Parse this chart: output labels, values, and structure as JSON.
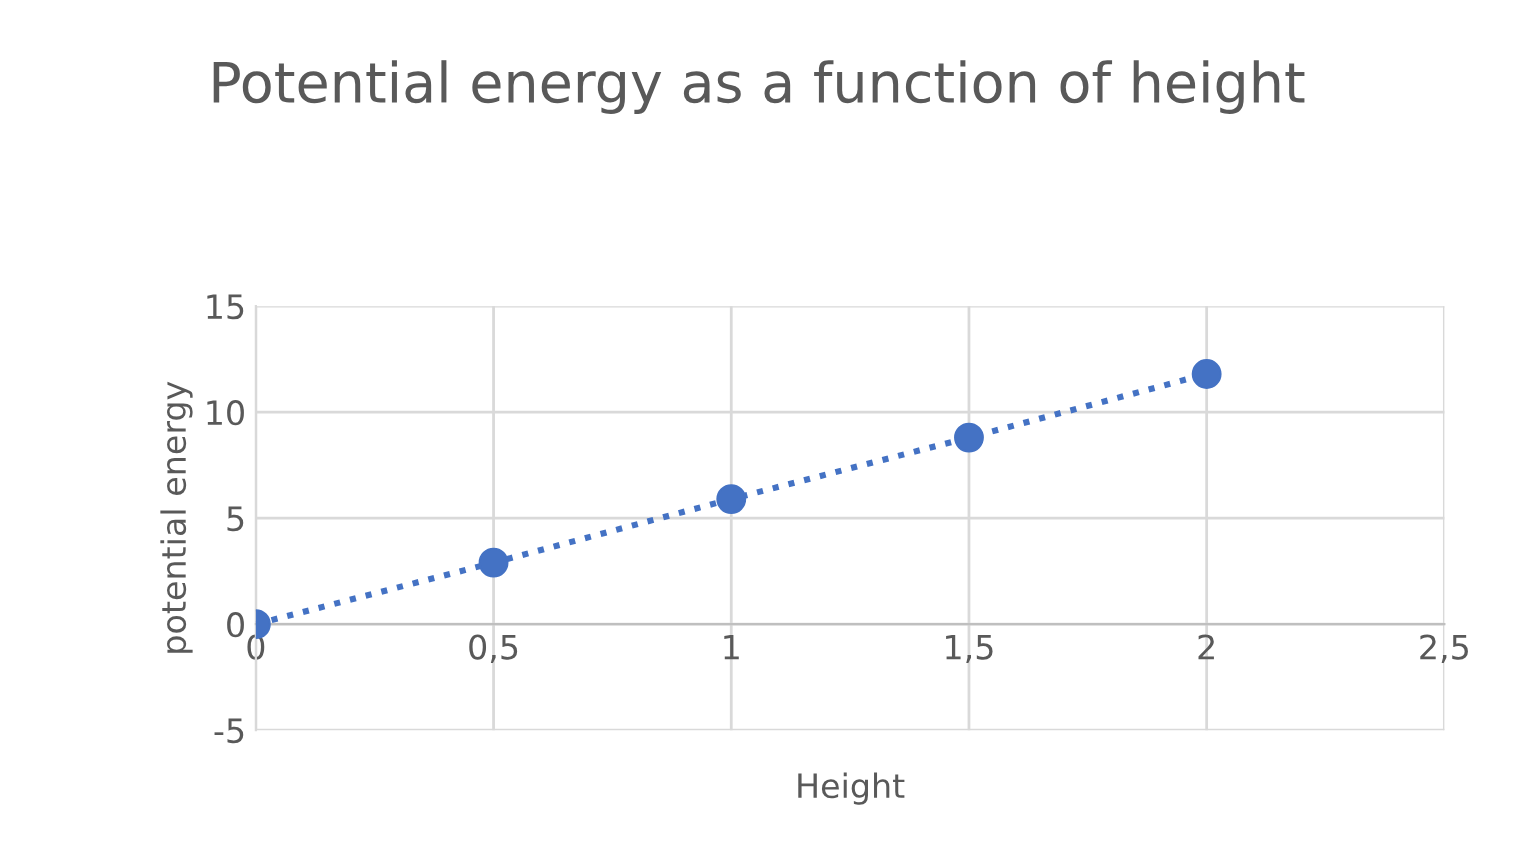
{
  "chart_data": {
    "type": "line",
    "title": "Potential energy as a function of height",
    "xlabel": "Height",
    "ylabel": "potential energy",
    "x": [
      0,
      0.5,
      1,
      1.5,
      2
    ],
    "series": [
      {
        "color": "#4472c4",
        "values": [
          0,
          2.9,
          5.9,
          8.8,
          11.8
        ]
      }
    ],
    "marker": "circle",
    "line_style": "dotted",
    "grid": true,
    "xlim": [
      0,
      2.5
    ],
    "xticks": [
      0,
      {
        "value": 0.5,
        "label": "0,5"
      },
      1,
      {
        "value": 1.5,
        "label": "1,5"
      },
      2,
      {
        "value": 2.5,
        "label": "2,5"
      }
    ],
    "ylim": [
      -5,
      15
    ],
    "yticks": [
      -5,
      0,
      5,
      10,
      15
    ]
  }
}
